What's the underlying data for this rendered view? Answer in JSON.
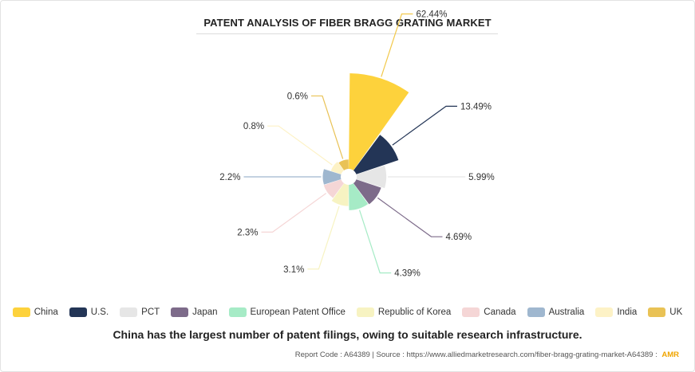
{
  "title": "PATENT ANALYSIS OF FIBER BRAGG GRATING MARKET",
  "caption": "China has the largest number of patent filings, owing to suitable research infrastructure.",
  "footer": {
    "report_code": "Report Code : A64389",
    "separator": "|",
    "source": "Source : https://www.alliedmarketresearch.com/fiber-bragg-grating-market-A64389 :",
    "brand": "AMR"
  },
  "chart_data": {
    "type": "nightingale-rose",
    "title": "PATENT ANALYSIS OF FIBER BRAGG GRATING MARKET",
    "legend_position": "bottom",
    "unit": "%",
    "categories": [
      "China",
      "U.S.",
      "PCT",
      "Japan",
      "European Patent Office",
      "Republic of Korea",
      "Canada",
      "Australia",
      "India",
      "UK"
    ],
    "values": [
      62.44,
      13.49,
      5.99,
      4.69,
      4.39,
      3.1,
      2.3,
      2.2,
      0.8,
      0.6
    ],
    "labels": [
      "62.44%",
      "13.49%",
      "5.99%",
      "4.69%",
      "4.39%",
      "3.1%",
      "2.3%",
      "2.2%",
      "0.8%",
      "0.6%"
    ],
    "colors": [
      "#fdd23c",
      "#233556",
      "#e6e6e6",
      "#7d6b8a",
      "#a6ebc6",
      "#f7f3c2",
      "#f5d6d6",
      "#9fb7cf",
      "#fdf2c6",
      "#e9c255"
    ]
  }
}
